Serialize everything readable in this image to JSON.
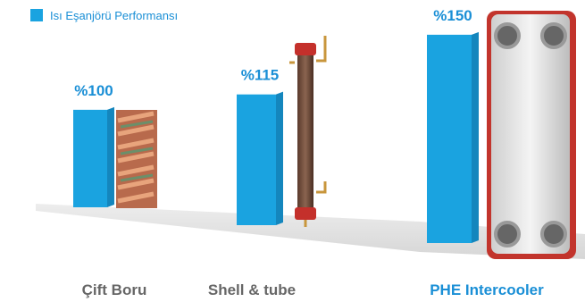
{
  "chart_data": {
    "type": "bar",
    "series": [
      {
        "name": "Isı Eşanjörü Performansı",
        "color": "#1aa3e0",
        "values": [
          100,
          115,
          150
        ],
        "value_labels": [
          "%100",
          "%115",
          "%150"
        ]
      }
    ],
    "categories": [
      "Çift Boru",
      "Shell & tube",
      "PHE Intercooler"
    ]
  }
}
